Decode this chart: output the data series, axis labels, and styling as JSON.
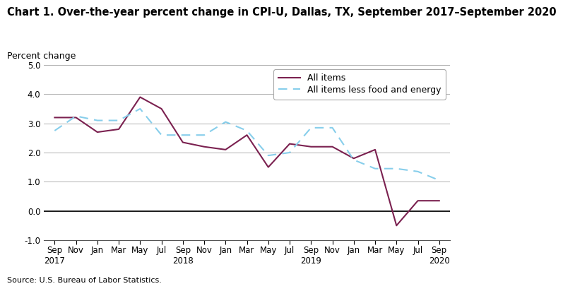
{
  "title": "Chart 1. Over-the-year percent change in CPI-U, Dallas, TX, September 2017–September 2020",
  "ylabel": "Percent change",
  "source": "Source: U.S. Bureau of Labor Statistics.",
  "all_items": [
    3.2,
    3.2,
    2.7,
    2.8,
    3.9,
    3.5,
    2.35,
    2.2,
    2.1,
    2.6,
    1.5,
    2.3,
    2.2,
    2.2,
    1.8,
    2.1,
    -0.5,
    0.35,
    0.35
  ],
  "all_items_less": [
    2.75,
    3.25,
    3.1,
    3.1,
    3.5,
    2.6,
    2.6,
    2.6,
    3.05,
    2.75,
    1.9,
    2.0,
    2.85,
    2.85,
    1.75,
    1.45,
    1.45,
    1.35,
    1.05
  ],
  "all_items_color": "#7b2150",
  "all_items_less_color": "#87CEEB",
  "ylim": [
    -1.0,
    5.0
  ],
  "yticks": [
    -1.0,
    0.0,
    1.0,
    2.0,
    3.0,
    4.0,
    5.0
  ],
  "xlabels": [
    "Sep\n2017",
    "Nov",
    "Jan",
    "Mar",
    "May",
    "Jul",
    "Sep\n2018",
    "Nov",
    "Jan",
    "Mar",
    "May",
    "Jul",
    "Sep\n2019",
    "Nov",
    "Jan",
    "Mar",
    "May",
    "Jul",
    "Sep\n2020"
  ],
  "title_fontsize": 10.5,
  "label_fontsize": 9,
  "tick_fontsize": 8.5
}
